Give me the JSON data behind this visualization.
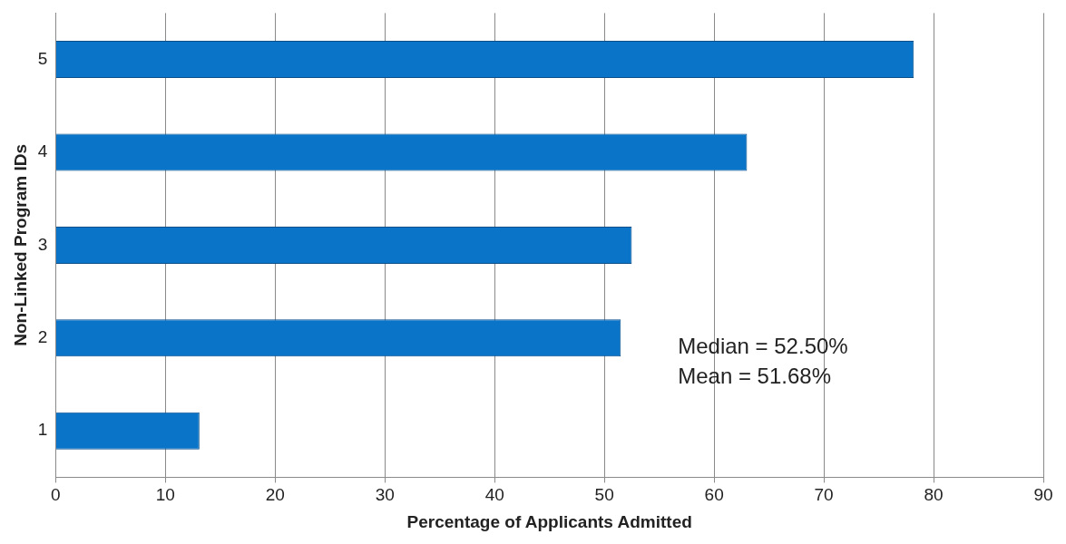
{
  "chart_data": {
    "type": "bar",
    "orientation": "horizontal",
    "xlabel": "Percentage of Applicants Admitted",
    "ylabel": "Non-Linked Program IDs",
    "categories": [
      "5",
      "4",
      "3",
      "2",
      "1"
    ],
    "values": [
      78.2,
      63,
      52.5,
      51.5,
      13.1
    ],
    "color": "#0a74c8",
    "xlim": [
      0,
      90
    ],
    "xticks": [
      0,
      10,
      20,
      30,
      40,
      50,
      60,
      70,
      80,
      90
    ],
    "grid": "x",
    "annotations": [
      "Median = 52.50%",
      "Mean = 51.68%"
    ]
  }
}
